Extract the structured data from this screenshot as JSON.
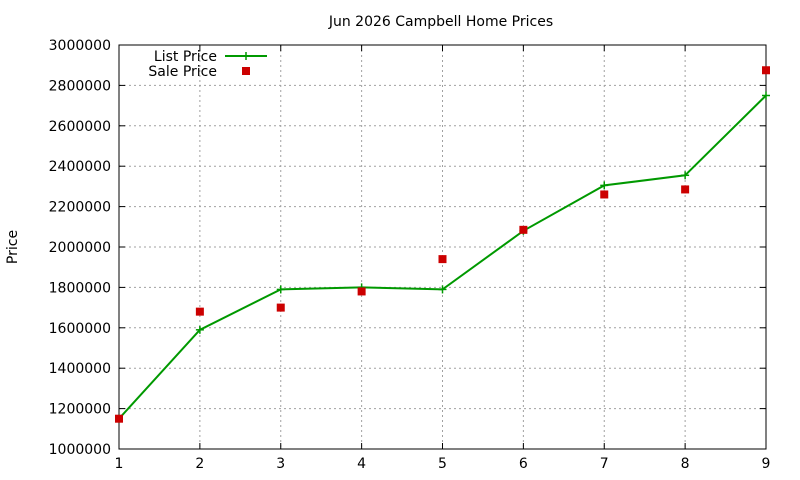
{
  "chart_data": {
    "type": "line",
    "title": "Jun 2026 Campbell Home Prices",
    "xlabel": "",
    "ylabel": "Price",
    "x": [
      1,
      2,
      3,
      4,
      5,
      6,
      7,
      8,
      9
    ],
    "xlim": [
      1,
      9
    ],
    "ylim": [
      1000000,
      3000000
    ],
    "xticks": [
      "1",
      "2",
      "3",
      "4",
      "5",
      "6",
      "7",
      "8",
      "9"
    ],
    "yticks": [
      "1000000",
      "1200000",
      "1400000",
      "1600000",
      "1800000",
      "2000000",
      "2200000",
      "2400000",
      "2600000",
      "2800000",
      "3000000"
    ],
    "grid": true,
    "legend_position": "top-left",
    "series": [
      {
        "name": "List Price",
        "style": "linespoints",
        "color": "#009900",
        "values": [
          1150000,
          1590000,
          1790000,
          1800000,
          1790000,
          2080000,
          2305000,
          2355000,
          2750000
        ]
      },
      {
        "name": "Sale Price",
        "style": "points",
        "color": "#cc0000",
        "values": [
          1150000,
          1680000,
          1700000,
          1780000,
          1940000,
          2085000,
          2260000,
          2285000,
          2875000
        ]
      }
    ]
  }
}
